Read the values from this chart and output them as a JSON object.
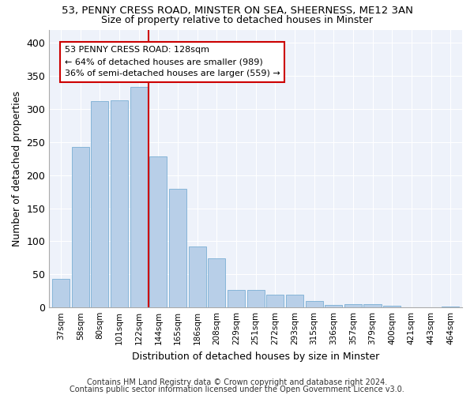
{
  "title1": "53, PENNY CRESS ROAD, MINSTER ON SEA, SHEERNESS, ME12 3AN",
  "title2": "Size of property relative to detached houses in Minster",
  "xlabel": "Distribution of detached houses by size in Minster",
  "ylabel": "Number of detached properties",
  "categories": [
    "37sqm",
    "58sqm",
    "80sqm",
    "101sqm",
    "122sqm",
    "144sqm",
    "165sqm",
    "186sqm",
    "208sqm",
    "229sqm",
    "251sqm",
    "272sqm",
    "293sqm",
    "315sqm",
    "336sqm",
    "357sqm",
    "379sqm",
    "400sqm",
    "421sqm",
    "443sqm",
    "464sqm"
  ],
  "values": [
    43,
    243,
    312,
    313,
    333,
    228,
    179,
    92,
    74,
    26,
    26,
    19,
    19,
    10,
    4,
    5,
    5,
    3,
    0,
    0,
    2
  ],
  "bar_color": "#b8cfe8",
  "bar_edgecolor": "#7aaed4",
  "background_color": "#eef2fa",
  "vline_x_idx": 4,
  "vline_color": "#cc0000",
  "annotation_line1": "53 PENNY CRESS ROAD: 128sqm",
  "annotation_line2": "← 64% of detached houses are smaller (989)",
  "annotation_line3": "36% of semi-detached houses are larger (559) →",
  "annotation_box_color": "#cc0000",
  "ylim": [
    0,
    420
  ],
  "yticks": [
    0,
    50,
    100,
    150,
    200,
    250,
    300,
    350,
    400
  ],
  "title1_fontsize": 9.5,
  "title2_fontsize": 9,
  "footer1": "Contains HM Land Registry data © Crown copyright and database right 2024.",
  "footer2": "Contains public sector information licensed under the Open Government Licence v3.0."
}
